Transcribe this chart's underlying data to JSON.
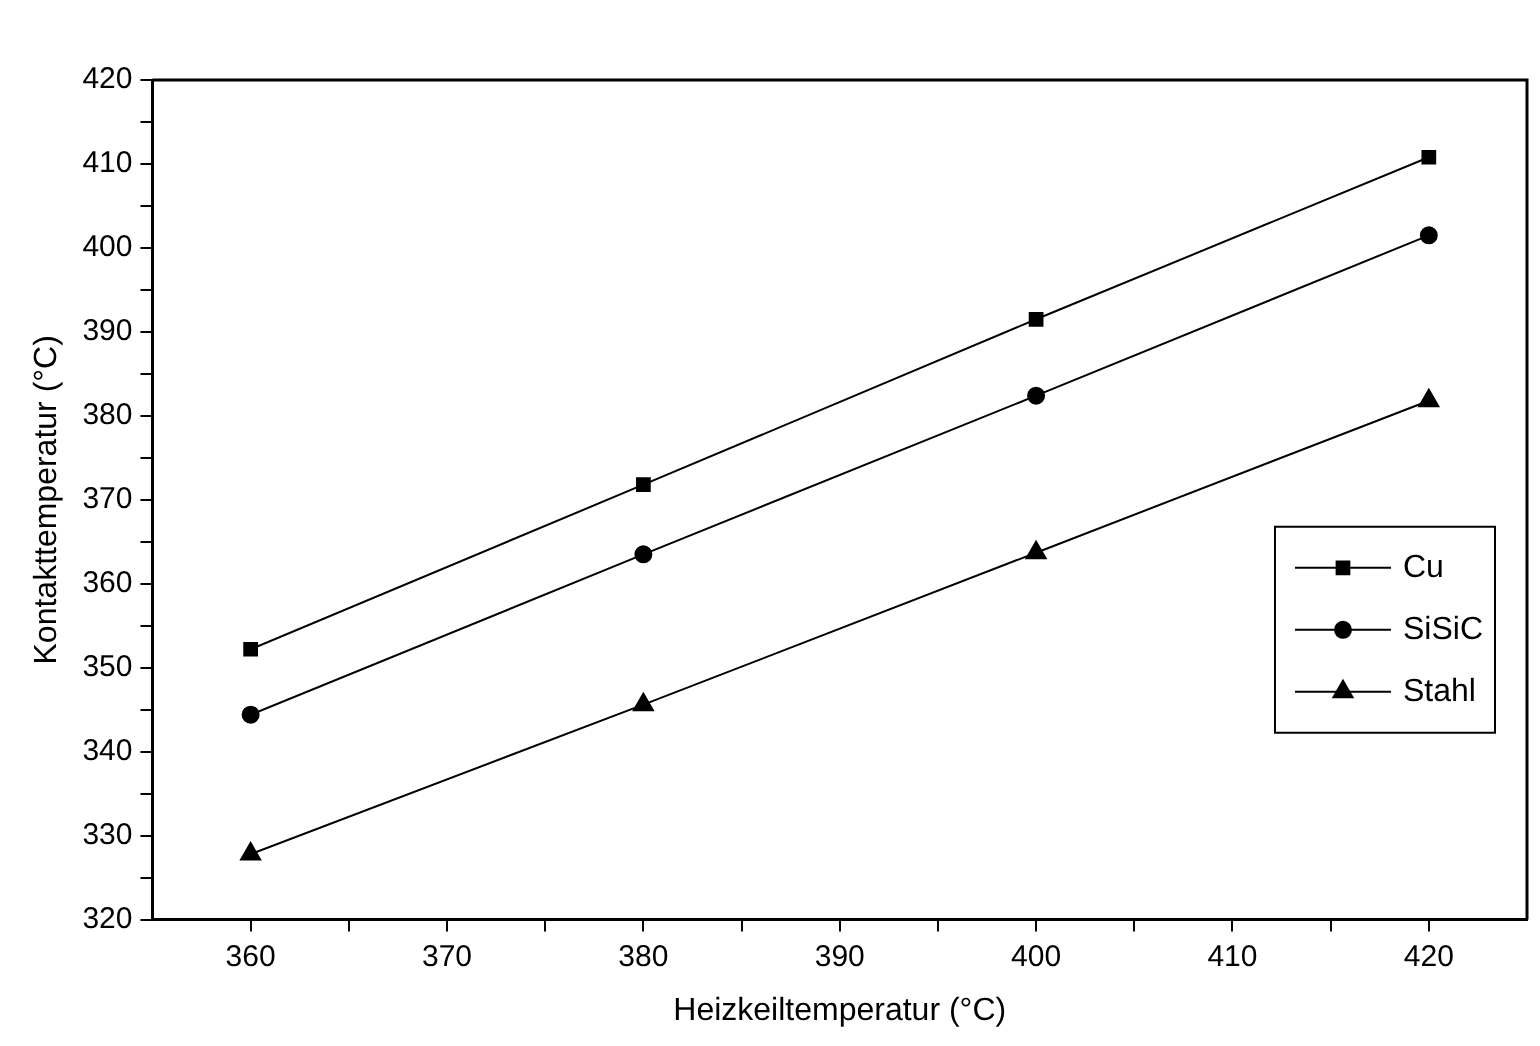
{
  "chart_data": {
    "type": "line",
    "xlabel": "Heizkeiltemperatur (°C)",
    "ylabel": "Kontakttemperatur (°C)",
    "x": [
      360,
      380,
      400,
      420
    ],
    "series": [
      {
        "name": "Cu",
        "color": "#000000",
        "marker": "square",
        "values": [
          352.2,
          371.8,
          391.5,
          410.8
        ]
      },
      {
        "name": "SiSiC",
        "color": "#000000",
        "marker": "circle",
        "values": [
          344.4,
          363.5,
          382.4,
          401.5
        ]
      },
      {
        "name": "Stahl",
        "color": "#000000",
        "marker": "triangle",
        "values": [
          327.8,
          345.6,
          363.7,
          381.8
        ]
      }
    ],
    "xlim": [
      355,
      425
    ],
    "xticks": [
      360,
      370,
      380,
      390,
      400,
      410,
      420
    ],
    "ylim": [
      320,
      420
    ],
    "yticks": [
      320,
      330,
      340,
      350,
      360,
      370,
      380,
      390,
      400,
      410,
      420
    ],
    "grid": false,
    "legend": "right",
    "line_style": "solid"
  }
}
